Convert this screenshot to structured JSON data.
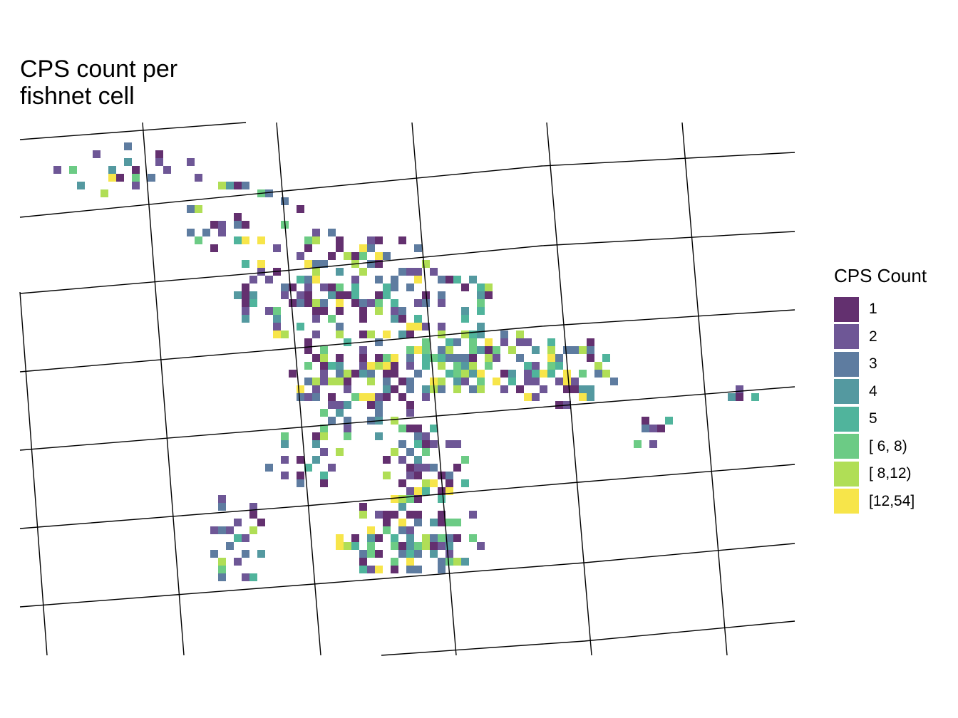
{
  "map": {
    "title": "CPS count per\nfishnet cell",
    "legend": {
      "title": "CPS Count",
      "items": [
        {
          "label": "1",
          "color": "#63306F"
        },
        {
          "label": "2",
          "color": "#6E5796"
        },
        {
          "label": "3",
          "color": "#5E7CA0"
        },
        {
          "label": "4",
          "color": "#5499A0"
        },
        {
          "label": "5",
          "color": "#50B49C"
        },
        {
          "label": "[ 6, 8)",
          "color": "#6CCB85"
        },
        {
          "label": "[ 8,12)",
          "color": "#B0DE56"
        },
        {
          "label": "[12,54]",
          "color": "#F7E54A"
        }
      ]
    }
  }
}
